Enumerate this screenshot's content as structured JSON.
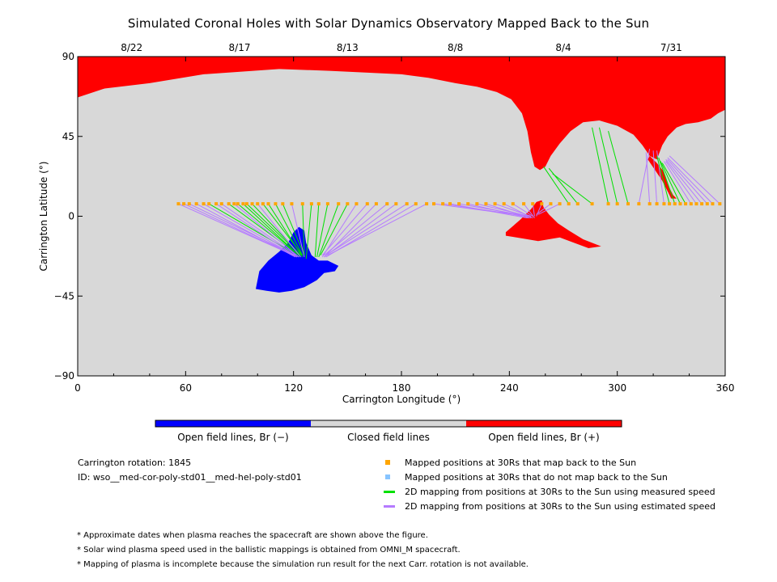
{
  "title": "Simulated Coronal Holes with Solar Dynamics Observatory Mapped Back to the Sun",
  "colors": {
    "closed": "#d8d8d8",
    "open_negative": "#0000ff",
    "open_positive": "#ff0000",
    "measured_line": "#00e000",
    "estimated_line": "#b57bff",
    "mapped_marker": "#ffa500",
    "unmapped_marker": "#87c4ff"
  },
  "chart_data": {
    "type": "map",
    "xlabel": "Carrington Longitude (°)",
    "ylabel": "Carrington Latitude (°)",
    "xlim": [
      0,
      360
    ],
    "ylim": [
      -90,
      90
    ],
    "x_ticks": [
      0,
      60,
      120,
      180,
      240,
      300,
      360
    ],
    "y_ticks": [
      -90,
      -45,
      0,
      45,
      90
    ],
    "y_tick_labels": [
      "−90",
      "−45",
      "0",
      "45",
      "90"
    ],
    "top_axis": {
      "ticks": [
        {
          "lon": 30,
          "label": "8/22"
        },
        {
          "lon": 90,
          "label": "8/17"
        },
        {
          "lon": 150,
          "label": "8/13"
        },
        {
          "lon": 210,
          "label": "8/8"
        },
        {
          "lon": 270,
          "label": "8/4"
        },
        {
          "lon": 330,
          "label": "7/31"
        }
      ]
    },
    "regions": [
      {
        "name": "north polar positive hole",
        "polarity": "positive",
        "outline": [
          [
            0,
            90
          ],
          [
            360,
            90
          ],
          [
            360,
            60
          ],
          [
            356,
            58
          ],
          [
            352,
            55
          ],
          [
            345,
            53
          ],
          [
            338,
            52
          ],
          [
            333,
            50
          ],
          [
            328,
            45
          ],
          [
            325,
            40
          ],
          [
            322,
            32
          ],
          [
            318,
            34
          ],
          [
            314,
            40
          ],
          [
            309,
            46
          ],
          [
            300,
            51
          ],
          [
            290,
            54
          ],
          [
            281,
            53
          ],
          [
            274,
            48
          ],
          [
            268,
            41
          ],
          [
            263,
            34
          ],
          [
            260,
            28
          ],
          [
            257,
            26
          ],
          [
            254,
            28
          ],
          [
            252,
            36
          ],
          [
            250,
            48
          ],
          [
            247,
            58
          ],
          [
            241,
            66
          ],
          [
            233,
            70
          ],
          [
            222,
            73
          ],
          [
            210,
            75
          ],
          [
            195,
            78
          ],
          [
            180,
            80
          ],
          [
            160,
            81
          ],
          [
            140,
            82
          ],
          [
            112,
            83
          ],
          [
            70,
            80
          ],
          [
            40,
            75
          ],
          [
            15,
            72
          ],
          [
            0,
            67
          ]
        ]
      },
      {
        "name": "northern extension tongue",
        "polarity": "positive",
        "outline": [
          [
            318,
            34
          ],
          [
            322,
            30
          ],
          [
            326,
            25
          ],
          [
            328,
            18
          ],
          [
            331,
            12
          ],
          [
            333,
            10
          ],
          [
            330,
            10
          ],
          [
            328,
            14
          ],
          [
            325,
            20
          ],
          [
            321,
            26
          ],
          [
            317,
            32
          ]
        ]
      },
      {
        "name": "equatorial positive hole",
        "polarity": "positive",
        "outline": [
          [
            238,
            -9
          ],
          [
            246,
            -2
          ],
          [
            252,
            4
          ],
          [
            255,
            8
          ],
          [
            258,
            9
          ],
          [
            259,
            5
          ],
          [
            262,
            1
          ],
          [
            267,
            -4
          ],
          [
            273,
            -8
          ],
          [
            281,
            -13
          ],
          [
            291,
            -17
          ],
          [
            284,
            -18
          ],
          [
            276,
            -15
          ],
          [
            268,
            -12
          ],
          [
            262,
            -13
          ],
          [
            256,
            -14
          ],
          [
            250,
            -13
          ],
          [
            244,
            -12
          ],
          [
            238,
            -11
          ]
        ]
      },
      {
        "name": "southern negative hole",
        "polarity": "negative",
        "outline": [
          [
            99,
            -41
          ],
          [
            101,
            -31
          ],
          [
            106,
            -25
          ],
          [
            112,
            -20
          ],
          [
            117,
            -15
          ],
          [
            120,
            -9
          ],
          [
            123,
            -6
          ],
          [
            126,
            -8
          ],
          [
            127,
            -15
          ],
          [
            130,
            -22
          ],
          [
            134,
            -25
          ],
          [
            139,
            -25
          ],
          [
            145,
            -28
          ],
          [
            143,
            -31
          ],
          [
            137,
            -32
          ],
          [
            133,
            -36
          ],
          [
            126,
            -40
          ],
          [
            119,
            -42
          ],
          [
            112,
            -43
          ],
          [
            105,
            -42
          ]
        ]
      }
    ],
    "mapping": {
      "start_lat": 7,
      "mapped_points": [
        {
          "lon": 56,
          "end": [
            120,
            -22
          ],
          "kind": "estimated"
        },
        {
          "lon": 59,
          "end": [
            120,
            -22
          ],
          "kind": "estimated"
        },
        {
          "lon": 62,
          "end": [
            121,
            -22
          ],
          "kind": "estimated"
        },
        {
          "lon": 66,
          "end": [
            121,
            -23
          ],
          "kind": "estimated"
        },
        {
          "lon": 70,
          "end": [
            122,
            -23
          ],
          "kind": "estimated"
        },
        {
          "lon": 73,
          "end": [
            122,
            -22
          ],
          "kind": "measured"
        },
        {
          "lon": 77,
          "end": [
            122,
            -23
          ],
          "kind": "estimated"
        },
        {
          "lon": 80,
          "end": [
            123,
            -23
          ],
          "kind": "estimated"
        },
        {
          "lon": 84,
          "end": [
            123,
            -22
          ],
          "kind": "measured"
        },
        {
          "lon": 87,
          "end": [
            123,
            -23
          ],
          "kind": "estimated"
        },
        {
          "lon": 89,
          "end": [
            123,
            -22
          ],
          "kind": "measured"
        },
        {
          "lon": 92,
          "end": [
            124,
            -23
          ],
          "kind": "measured"
        },
        {
          "lon": 94,
          "end": [
            124,
            -22
          ],
          "kind": "measured"
        },
        {
          "lon": 97,
          "end": [
            124,
            -22
          ],
          "kind": "measured"
        },
        {
          "lon": 100,
          "end": [
            124,
            -23
          ],
          "kind": "estimated"
        },
        {
          "lon": 103,
          "end": [
            125,
            -22
          ],
          "kind": "measured"
        },
        {
          "lon": 106,
          "end": [
            125,
            -23
          ],
          "kind": "measured"
        },
        {
          "lon": 110,
          "end": [
            125,
            -22
          ],
          "kind": "measured"
        },
        {
          "lon": 114,
          "end": [
            126,
            -22
          ],
          "kind": "measured"
        },
        {
          "lon": 119,
          "end": [
            126,
            -23
          ],
          "kind": "estimated"
        },
        {
          "lon": 125,
          "end": [
            126,
            -22
          ],
          "kind": "measured"
        },
        {
          "lon": 130,
          "end": [
            127,
            -24
          ],
          "kind": "measured"
        },
        {
          "lon": 134,
          "end": [
            132,
            -23
          ],
          "kind": "measured"
        },
        {
          "lon": 139,
          "end": [
            133,
            -23
          ],
          "kind": "measured"
        },
        {
          "lon": 145,
          "end": [
            134,
            -23
          ],
          "kind": "measured"
        },
        {
          "lon": 150,
          "end": [
            135,
            -22
          ],
          "kind": "measured"
        },
        {
          "lon": 155,
          "end": [
            136,
            -23
          ],
          "kind": "estimated"
        },
        {
          "lon": 161,
          "end": [
            136,
            -22
          ],
          "kind": "estimated"
        },
        {
          "lon": 166,
          "end": [
            137,
            -23
          ],
          "kind": "estimated"
        },
        {
          "lon": 172,
          "end": [
            137,
            -22
          ],
          "kind": "estimated"
        },
        {
          "lon": 177,
          "end": [
            137,
            -23
          ],
          "kind": "estimated"
        },
        {
          "lon": 183,
          "end": [
            138,
            -22
          ],
          "kind": "estimated"
        },
        {
          "lon": 188,
          "end": [
            138,
            -23
          ],
          "kind": "estimated"
        },
        {
          "lon": 194,
          "end": [
            139,
            -22
          ],
          "kind": "estimated"
        },
        {
          "lon": 198,
          "end": [
            250,
            0
          ],
          "kind": "estimated"
        },
        {
          "lon": 203,
          "end": [
            250,
            0
          ],
          "kind": "estimated"
        },
        {
          "lon": 207,
          "end": [
            250,
            -1
          ],
          "kind": "estimated"
        },
        {
          "lon": 212,
          "end": [
            251,
            0
          ],
          "kind": "estimated"
        },
        {
          "lon": 217,
          "end": [
            251,
            -1
          ],
          "kind": "estimated"
        },
        {
          "lon": 222,
          "end": [
            251,
            0
          ],
          "kind": "estimated"
        },
        {
          "lon": 227,
          "end": [
            252,
            -1
          ],
          "kind": "estimated"
        },
        {
          "lon": 232,
          "end": [
            252,
            0
          ],
          "kind": "estimated"
        },
        {
          "lon": 237,
          "end": [
            253,
            -1
          ],
          "kind": "estimated"
        },
        {
          "lon": 242,
          "end": [
            253,
            0
          ],
          "kind": "estimated"
        },
        {
          "lon": 248,
          "end": [
            254,
            -1
          ],
          "kind": "estimated"
        },
        {
          "lon": 253,
          "end": [
            254,
            0
          ],
          "kind": "estimated"
        },
        {
          "lon": 258,
          "end": [
            255,
            0
          ],
          "kind": "estimated"
        },
        {
          "lon": 263,
          "end": [
            255,
            1
          ],
          "kind": "estimated"
        },
        {
          "lon": 268,
          "end": [
            256,
            1
          ],
          "kind": "estimated"
        },
        {
          "lon": 273,
          "end": [
            259,
            28
          ],
          "kind": "measured"
        },
        {
          "lon": 278,
          "end": [
            262,
            27
          ],
          "kind": "measured"
        },
        {
          "lon": 286,
          "end": [
            264,
            24
          ],
          "kind": "measured"
        },
        {
          "lon": 295,
          "end": [
            286,
            50
          ],
          "kind": "measured"
        },
        {
          "lon": 300,
          "end": [
            290,
            50
          ],
          "kind": "measured"
        },
        {
          "lon": 306,
          "end": [
            295,
            48
          ],
          "kind": "measured"
        },
        {
          "lon": 312,
          "end": [
            318,
            38
          ],
          "kind": "estimated"
        },
        {
          "lon": 318,
          "end": [
            316,
            36
          ],
          "kind": "estimated"
        },
        {
          "lon": 322,
          "end": [
            320,
            37
          ],
          "kind": "estimated"
        },
        {
          "lon": 326,
          "end": [
            322,
            37
          ],
          "kind": "estimated"
        },
        {
          "lon": 329,
          "end": [
            322,
            34
          ],
          "kind": "measured"
        },
        {
          "lon": 332,
          "end": [
            323,
            33
          ],
          "kind": "measured"
        },
        {
          "lon": 335,
          "end": [
            324,
            31
          ],
          "kind": "measured"
        },
        {
          "lon": 338,
          "end": [
            325,
            30
          ],
          "kind": "measured"
        },
        {
          "lon": 341,
          "end": [
            326,
            31
          ],
          "kind": "estimated"
        },
        {
          "lon": 344,
          "end": [
            327,
            31
          ],
          "kind": "estimated"
        },
        {
          "lon": 347,
          "end": [
            327,
            32
          ],
          "kind": "estimated"
        },
        {
          "lon": 350,
          "end": [
            328,
            32
          ],
          "kind": "estimated"
        },
        {
          "lon": 353,
          "end": [
            328,
            33
          ],
          "kind": "estimated"
        },
        {
          "lon": 357,
          "end": [
            329,
            34
          ],
          "kind": "estimated"
        }
      ]
    }
  },
  "colorbar": {
    "labels": [
      "Open field lines, Br (−)",
      "Closed field lines",
      "Open field lines, Br (+)"
    ]
  },
  "info": {
    "rotation": "Carrington rotation: 1845",
    "id": "ID: wso__med-cor-poly-std01__med-hel-poly-std01"
  },
  "legend": [
    {
      "label": "Mapped positions at 30Rs that map back to the Sun",
      "kind": "square",
      "color": "#ffa500"
    },
    {
      "label": "Mapped positions at 30Rs that do not map back to the Sun",
      "kind": "square",
      "color": "#87c4ff"
    },
    {
      "label": "2D mapping from positions at 30Rs to the Sun using measured speed",
      "kind": "line",
      "color": "#00e000"
    },
    {
      "label": "2D mapping from positions at 30Rs to the Sun using estimated speed",
      "kind": "line",
      "color": "#b57bff"
    }
  ],
  "notes": [
    "* Approximate dates when plasma reaches the spacecraft are shown above the figure.",
    "* Solar wind plasma speed used in the ballistic mappings is obtained from OMNI_M spacecraft.",
    "* Mapping of plasma is incomplete because the simulation run result for the next Carr. rotation is not available."
  ]
}
